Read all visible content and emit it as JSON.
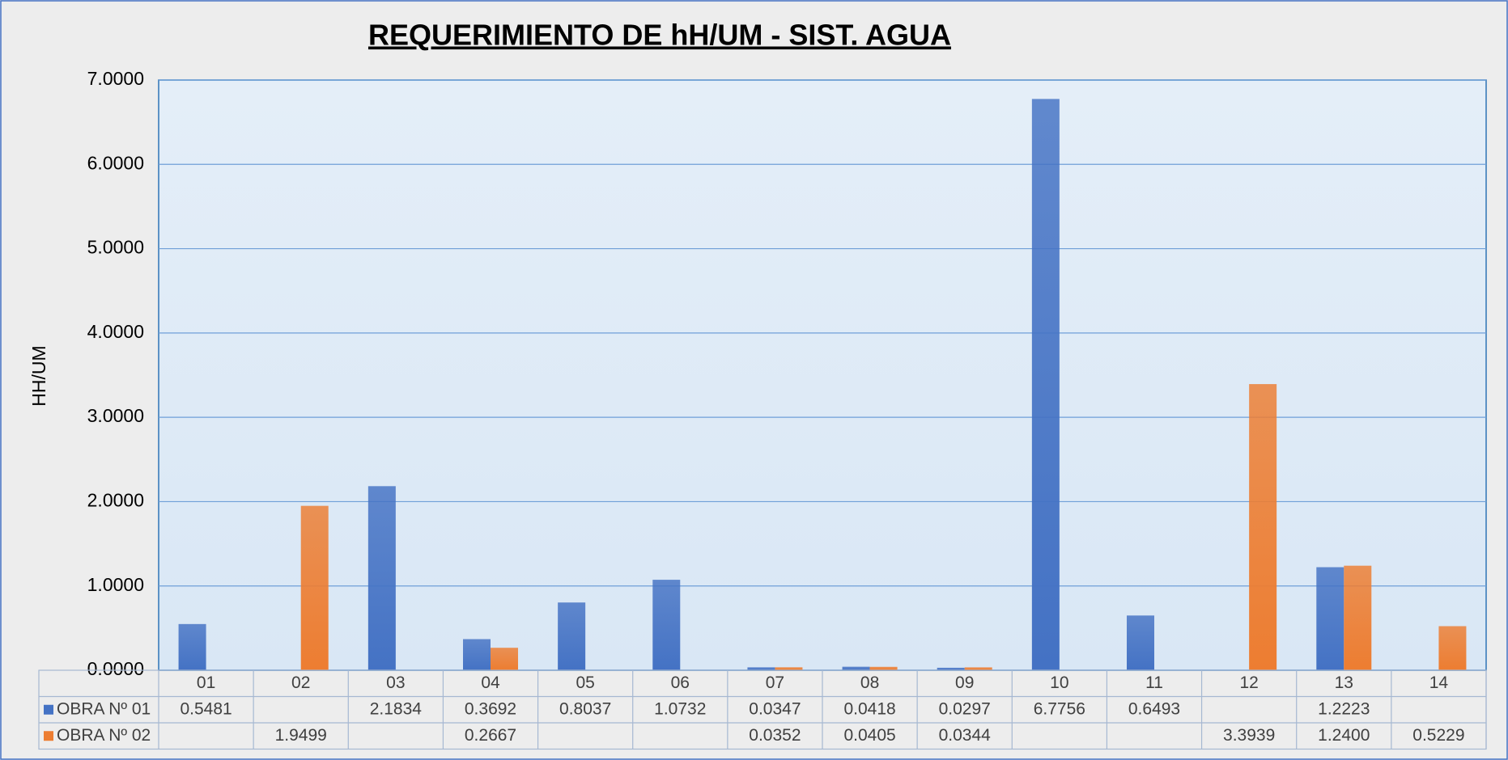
{
  "chart_data": {
    "type": "bar",
    "title": "REQUERIMIENTO DE hH/UM - SIST. AGUA",
    "y_label": "HH/UM",
    "categories": [
      "01",
      "02",
      "03",
      "04",
      "05",
      "06",
      "07",
      "08",
      "09",
      "10",
      "11",
      "12",
      "13",
      "14"
    ],
    "series": [
      {
        "name": "OBRA Nº 01",
        "color": "#4472c4",
        "values": [
          0.5481,
          null,
          2.1834,
          0.3692,
          0.8037,
          1.0732,
          0.0347,
          0.0418,
          0.0297,
          6.7756,
          0.6493,
          null,
          1.2223,
          null
        ],
        "value_labels": [
          "0.5481",
          null,
          "2.1834",
          "0.3692",
          "0.8037",
          "1.0732",
          "0.0347",
          "0.0418",
          "0.0297",
          "6.7756",
          "0.6493",
          null,
          "1.2223",
          null
        ]
      },
      {
        "name": "OBRA Nº 02",
        "color": "#ed7d31",
        "values": [
          null,
          1.9499,
          null,
          0.2667,
          null,
          null,
          0.0352,
          0.0405,
          0.0344,
          null,
          null,
          3.3939,
          1.24,
          0.5229
        ],
        "value_labels": [
          null,
          "1.9499",
          null,
          "0.2667",
          null,
          null,
          "0.0352",
          "0.0405",
          "0.0344",
          null,
          null,
          "3.3939",
          "1.2400",
          "0.5229"
        ]
      }
    ],
    "ylim": [
      0,
      7
    ],
    "yticks": [
      {
        "value": 0,
        "label": "0.0000"
      },
      {
        "value": 1,
        "label": "1.0000"
      },
      {
        "value": 2,
        "label": "2.0000"
      },
      {
        "value": 3,
        "label": "3.0000"
      },
      {
        "value": 4,
        "label": "4.0000"
      },
      {
        "value": 5,
        "label": "5.0000"
      },
      {
        "value": 6,
        "label": "6.0000"
      },
      {
        "value": 7,
        "label": "7.0000"
      }
    ],
    "grid": true,
    "data_table": true
  }
}
